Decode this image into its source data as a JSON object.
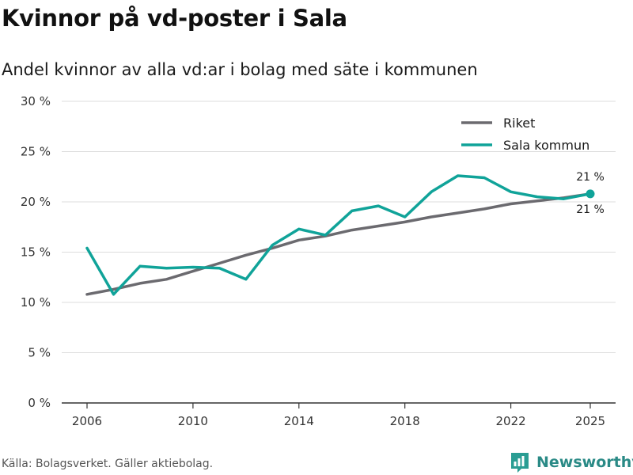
{
  "title": "Kvinnor på vd-poster i Sala",
  "subtitle": "Andel kvinnor av alla vd:ar i bolag med säte i kommunen",
  "source": "Källa: Bolagsverket. Gäller aktiebolag.",
  "brand": {
    "name": "Newsworthy",
    "icon": "newsworthy-logo-icon",
    "color": "#2a9d93"
  },
  "colors": {
    "riket": "#6b6a6f",
    "sala": "#10a399",
    "grid": "#dddddd",
    "axis": "#333333"
  },
  "chart_data": {
    "type": "line",
    "title": "Kvinnor på vd-poster i Sala",
    "subtitle": "Andel kvinnor av alla vd:ar i bolag med säte i kommunen",
    "xlabel": "",
    "ylabel": "",
    "xlim": [
      2006,
      2025
    ],
    "ylim": [
      0,
      30
    ],
    "yticks": [
      0,
      5,
      10,
      15,
      20,
      25,
      30
    ],
    "ytick_labels": [
      "0 %",
      "5 %",
      "10 %",
      "15 %",
      "20 %",
      "25 %",
      "30 %"
    ],
    "xticks": [
      2006,
      2010,
      2014,
      2018,
      2022,
      2025
    ],
    "xtick_labels": [
      "2006",
      "2010",
      "2014",
      "2018",
      "2022",
      "2025"
    ],
    "grid": true,
    "legend_position": "top-right",
    "x": [
      2006,
      2007,
      2008,
      2009,
      2010,
      2011,
      2012,
      2013,
      2014,
      2015,
      2016,
      2017,
      2018,
      2019,
      2020,
      2021,
      2022,
      2023,
      2024,
      2025
    ],
    "series": [
      {
        "name": "Riket",
        "values": [
          10.8,
          11.3,
          11.9,
          12.3,
          13.1,
          13.9,
          14.7,
          15.4,
          16.2,
          16.6,
          17.2,
          17.6,
          18.0,
          18.5,
          18.9,
          19.3,
          19.8,
          20.1,
          20.4,
          20.8
        ],
        "end_label": "21 %"
      },
      {
        "name": "Sala kommun",
        "values": [
          15.4,
          10.8,
          13.6,
          13.4,
          13.5,
          13.4,
          12.3,
          15.7,
          17.3,
          16.7,
          19.1,
          19.6,
          18.5,
          21.0,
          22.6,
          22.4,
          21.0,
          20.5,
          20.3,
          20.8
        ],
        "end_label": "21 %"
      }
    ]
  }
}
